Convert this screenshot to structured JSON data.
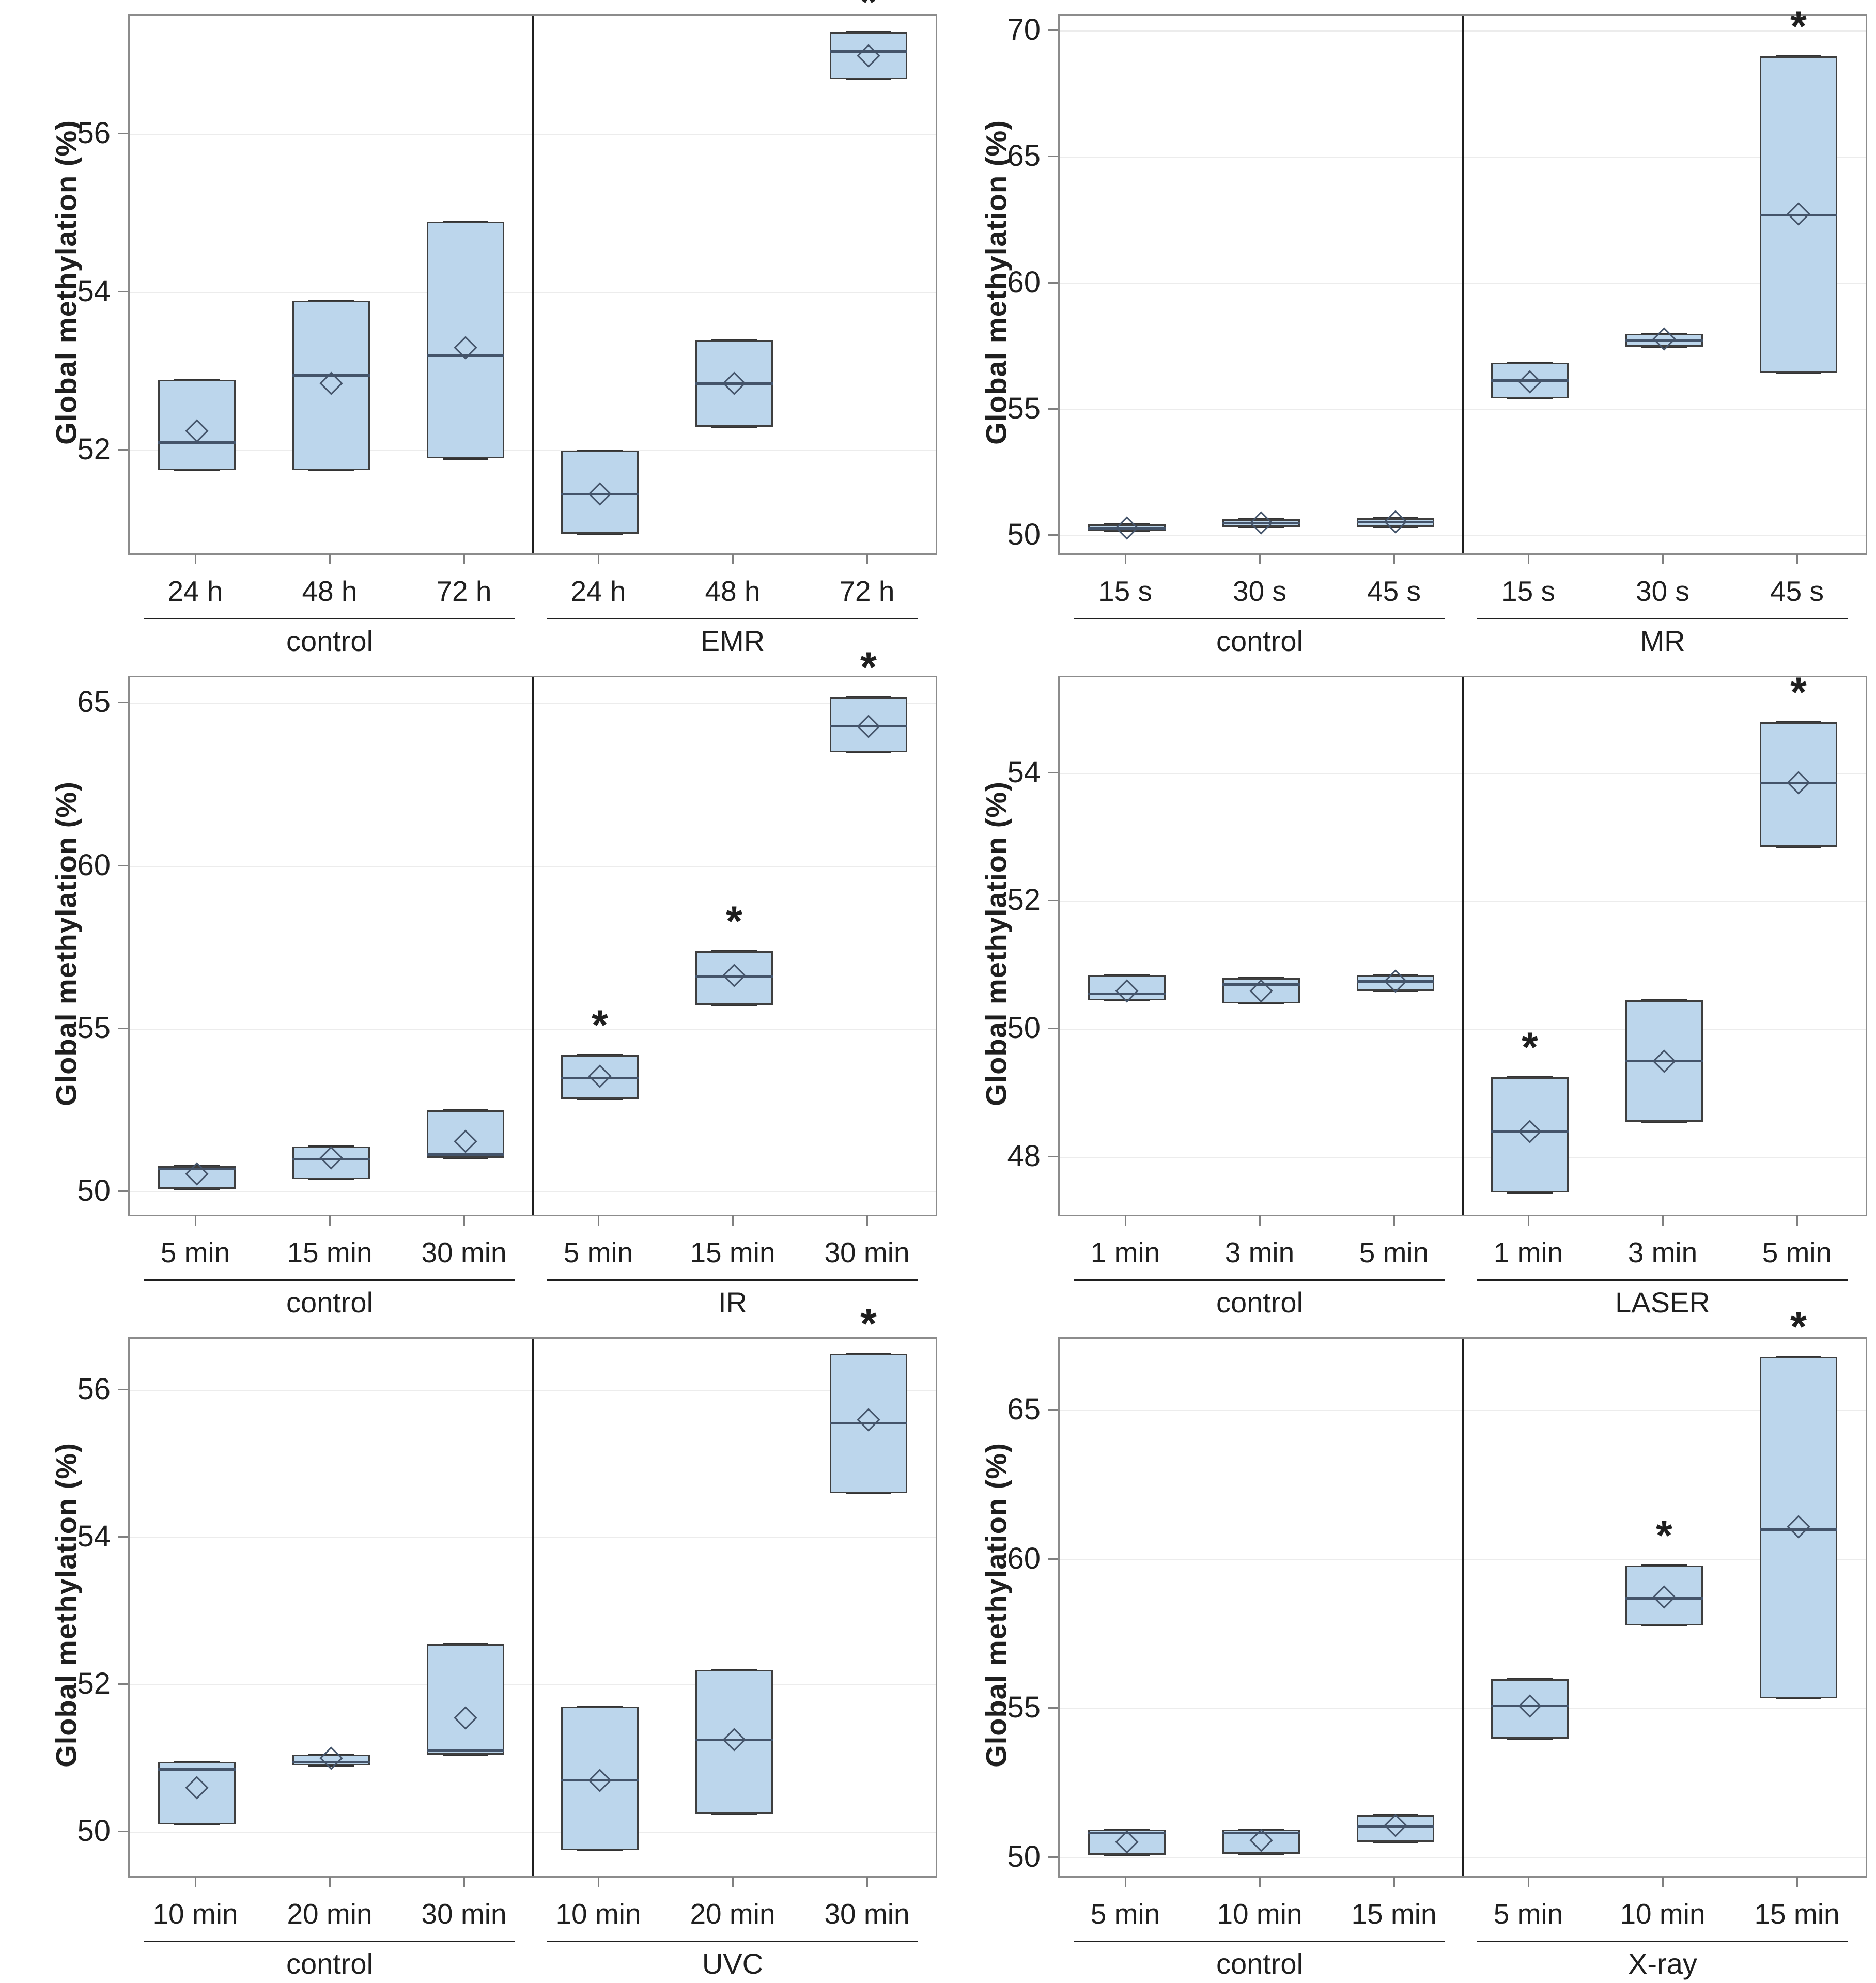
{
  "figure": {
    "y_axis_label": "Global methylation (%)",
    "significance_marker": "*"
  },
  "colors": {
    "box_fill": "#bcd6ec",
    "box_border": "#3f3f3f",
    "median_line": "#44546a",
    "mean_marker_outline": "#44546a",
    "whisker_cap": "#333333",
    "gridline": "#ececec",
    "panel_border": "#8c8c8c",
    "divider": "#1f1f1f",
    "text": "#1f1f1f",
    "tick": "#808080"
  },
  "chart_data": [
    {
      "type": "box",
      "panel": "EMR",
      "ylabel": "Global methylation (%)",
      "yticks": [
        52,
        54,
        56
      ],
      "ylim": [
        50.7,
        57.5
      ],
      "grid": true,
      "groups": [
        {
          "label": "control",
          "categories": [
            "24 h",
            "48 h",
            "72 h"
          ]
        },
        {
          "label": "EMR",
          "categories": [
            "24 h",
            "48 h",
            "72 h"
          ]
        }
      ],
      "boxes": [
        {
          "group": "control",
          "category": "24 h",
          "min": 51.75,
          "q1": 51.75,
          "median": 52.1,
          "q3": 52.9,
          "max": 52.9,
          "mean": 52.25,
          "significant": false
        },
        {
          "group": "control",
          "category": "48 h",
          "min": 51.75,
          "q1": 51.75,
          "median": 52.95,
          "q3": 53.9,
          "max": 53.9,
          "mean": 52.85,
          "significant": false
        },
        {
          "group": "control",
          "category": "72 h",
          "min": 51.9,
          "q1": 51.9,
          "median": 53.2,
          "q3": 54.9,
          "max": 54.9,
          "mean": 53.3,
          "significant": false
        },
        {
          "group": "EMR",
          "category": "24 h",
          "min": 50.95,
          "q1": 50.95,
          "median": 51.45,
          "q3": 52.0,
          "max": 52.0,
          "mean": 51.45,
          "significant": false
        },
        {
          "group": "EMR",
          "category": "48 h",
          "min": 52.3,
          "q1": 52.3,
          "median": 52.85,
          "q3": 53.4,
          "max": 53.4,
          "mean": 52.85,
          "significant": false
        },
        {
          "group": "EMR",
          "category": "72 h",
          "min": 56.7,
          "q1": 56.7,
          "median": 57.05,
          "q3": 57.3,
          "max": 57.3,
          "mean": 57.0,
          "significant": true
        }
      ]
    },
    {
      "type": "box",
      "panel": "MR",
      "ylabel": "Global methylation (%)",
      "yticks": [
        50,
        55,
        60,
        65,
        70
      ],
      "ylim": [
        49.3,
        70.6
      ],
      "grid": true,
      "groups": [
        {
          "label": "control",
          "categories": [
            "15 s",
            "30 s",
            "45 s"
          ]
        },
        {
          "label": "MR",
          "categories": [
            "15 s",
            "30 s",
            "45 s"
          ]
        }
      ],
      "boxes": [
        {
          "group": "control",
          "category": "15 s",
          "min": 50.2,
          "q1": 50.2,
          "median": 50.3,
          "q3": 50.45,
          "max": 50.45,
          "mean": 50.3,
          "significant": false
        },
        {
          "group": "control",
          "category": "30 s",
          "min": 50.35,
          "q1": 50.35,
          "median": 50.5,
          "q3": 50.65,
          "max": 50.65,
          "mean": 50.5,
          "significant": false
        },
        {
          "group": "control",
          "category": "45 s",
          "min": 50.35,
          "q1": 50.35,
          "median": 50.55,
          "q3": 50.7,
          "max": 50.7,
          "mean": 50.55,
          "significant": false
        },
        {
          "group": "MR",
          "category": "15 s",
          "min": 55.45,
          "q1": 55.45,
          "median": 56.15,
          "q3": 56.85,
          "max": 56.85,
          "mean": 56.1,
          "significant": false
        },
        {
          "group": "MR",
          "category": "30 s",
          "min": 57.5,
          "q1": 57.5,
          "median": 57.75,
          "q3": 58.0,
          "max": 58.0,
          "mean": 57.8,
          "significant": false
        },
        {
          "group": "MR",
          "category": "45 s",
          "min": 56.45,
          "q1": 56.45,
          "median": 62.7,
          "q3": 69.0,
          "max": 69.0,
          "mean": 62.75,
          "significant": true
        }
      ]
    },
    {
      "type": "box",
      "panel": "IR",
      "ylabel": "Global methylation (%)",
      "yticks": [
        50,
        55,
        60,
        65
      ],
      "ylim": [
        49.3,
        65.8
      ],
      "grid": true,
      "groups": [
        {
          "label": "control",
          "categories": [
            "5 min",
            "15 min",
            "30 min"
          ]
        },
        {
          "label": "IR",
          "categories": [
            "5 min",
            "15 min",
            "30 min"
          ]
        }
      ],
      "boxes": [
        {
          "group": "control",
          "category": "5 min",
          "min": 50.1,
          "q1": 50.1,
          "median": 50.7,
          "q3": 50.8,
          "max": 50.8,
          "mean": 50.55,
          "significant": false
        },
        {
          "group": "control",
          "category": "15 min",
          "min": 50.4,
          "q1": 50.4,
          "median": 51.0,
          "q3": 51.4,
          "max": 51.4,
          "mean": 51.05,
          "significant": false
        },
        {
          "group": "control",
          "category": "30 min",
          "min": 51.05,
          "q1": 51.05,
          "median": 51.15,
          "q3": 52.5,
          "max": 52.5,
          "mean": 51.55,
          "significant": false
        },
        {
          "group": "IR",
          "category": "5 min",
          "min": 52.85,
          "q1": 52.85,
          "median": 53.5,
          "q3": 54.2,
          "max": 54.2,
          "mean": 53.55,
          "significant": true
        },
        {
          "group": "IR",
          "category": "15 min",
          "min": 55.75,
          "q1": 55.75,
          "median": 56.6,
          "q3": 57.4,
          "max": 57.4,
          "mean": 56.65,
          "significant": true
        },
        {
          "group": "IR",
          "category": "30 min",
          "min": 63.5,
          "q1": 63.5,
          "median": 64.3,
          "q3": 65.2,
          "max": 65.2,
          "mean": 64.3,
          "significant": true
        }
      ]
    },
    {
      "type": "box",
      "panel": "LASER",
      "ylabel": "Global methylation (%)",
      "yticks": [
        48,
        50,
        52,
        54
      ],
      "ylim": [
        47.1,
        55.5
      ],
      "grid": true,
      "groups": [
        {
          "label": "control",
          "categories": [
            "1 min",
            "3 min",
            "5 min"
          ]
        },
        {
          "label": "LASER",
          "categories": [
            "1 min",
            "3 min",
            "5 min"
          ]
        }
      ],
      "boxes": [
        {
          "group": "control",
          "category": "1 min",
          "min": 50.45,
          "q1": 50.45,
          "median": 50.55,
          "q3": 50.85,
          "max": 50.85,
          "mean": 50.6,
          "significant": false
        },
        {
          "group": "control",
          "category": "3 min",
          "min": 50.4,
          "q1": 50.4,
          "median": 50.7,
          "q3": 50.8,
          "max": 50.8,
          "mean": 50.6,
          "significant": false
        },
        {
          "group": "control",
          "category": "5 min",
          "min": 50.6,
          "q1": 50.6,
          "median": 50.75,
          "q3": 50.85,
          "max": 50.85,
          "mean": 50.75,
          "significant": false
        },
        {
          "group": "LASER",
          "category": "1 min",
          "min": 47.45,
          "q1": 47.45,
          "median": 48.4,
          "q3": 49.25,
          "max": 49.25,
          "mean": 48.4,
          "significant": true
        },
        {
          "group": "LASER",
          "category": "3 min",
          "min": 48.55,
          "q1": 48.55,
          "median": 49.5,
          "q3": 50.45,
          "max": 50.45,
          "mean": 49.5,
          "significant": false
        },
        {
          "group": "LASER",
          "category": "5 min",
          "min": 52.85,
          "q1": 52.85,
          "median": 53.85,
          "q3": 54.8,
          "max": 54.8,
          "mean": 53.85,
          "significant": true
        }
      ]
    },
    {
      "type": "box",
      "panel": "UVC",
      "ylabel": "Global methylation (%)",
      "yticks": [
        50,
        52,
        54,
        56
      ],
      "ylim": [
        49.4,
        56.7
      ],
      "grid": true,
      "groups": [
        {
          "label": "control",
          "categories": [
            "10 min",
            "20 min",
            "30 min"
          ]
        },
        {
          "label": "UVC",
          "categories": [
            "10 min",
            "20 min",
            "30 min"
          ]
        }
      ],
      "boxes": [
        {
          "group": "control",
          "category": "10 min",
          "min": 50.1,
          "q1": 50.1,
          "median": 50.85,
          "q3": 50.95,
          "max": 50.95,
          "mean": 50.6,
          "significant": false
        },
        {
          "group": "control",
          "category": "20 min",
          "min": 50.9,
          "q1": 50.9,
          "median": 50.95,
          "q3": 51.05,
          "max": 51.05,
          "mean": 51.0,
          "significant": false
        },
        {
          "group": "control",
          "category": "30 min",
          "min": 51.05,
          "q1": 51.05,
          "median": 51.1,
          "q3": 52.55,
          "max": 52.55,
          "mean": 51.55,
          "significant": false
        },
        {
          "group": "UVC",
          "category": "10 min",
          "min": 49.75,
          "q1": 49.75,
          "median": 50.7,
          "q3": 51.7,
          "max": 51.7,
          "mean": 50.7,
          "significant": false
        },
        {
          "group": "UVC",
          "category": "20 min",
          "min": 50.25,
          "q1": 50.25,
          "median": 51.25,
          "q3": 52.2,
          "max": 52.2,
          "mean": 51.25,
          "significant": false
        },
        {
          "group": "UVC",
          "category": "30 min",
          "min": 54.6,
          "q1": 54.6,
          "median": 55.55,
          "q3": 56.5,
          "max": 56.5,
          "mean": 55.6,
          "significant": true
        }
      ]
    },
    {
      "type": "box",
      "panel": "X-ray",
      "ylabel": "Global methylation (%)",
      "yticks": [
        50,
        55,
        60,
        65
      ],
      "ylim": [
        49.4,
        67.4
      ],
      "grid": true,
      "groups": [
        {
          "label": "control",
          "categories": [
            "5 min",
            "10 min",
            "15 min"
          ]
        },
        {
          "label": "X-ray",
          "categories": [
            "5 min",
            "10 min",
            "15 min"
          ]
        }
      ],
      "boxes": [
        {
          "group": "control",
          "category": "5 min",
          "min": 50.1,
          "q1": 50.1,
          "median": 50.85,
          "q3": 50.95,
          "max": 50.95,
          "mean": 50.55,
          "significant": false
        },
        {
          "group": "control",
          "category": "10 min",
          "min": 50.15,
          "q1": 50.15,
          "median": 50.85,
          "q3": 50.95,
          "max": 50.95,
          "mean": 50.6,
          "significant": false
        },
        {
          "group": "control",
          "category": "15 min",
          "min": 50.55,
          "q1": 50.55,
          "median": 51.05,
          "q3": 51.45,
          "max": 51.45,
          "mean": 51.1,
          "significant": false
        },
        {
          "group": "X-ray",
          "category": "5 min",
          "min": 54.0,
          "q1": 54.0,
          "median": 55.1,
          "q3": 56.0,
          "max": 56.0,
          "mean": 55.1,
          "significant": false
        },
        {
          "group": "X-ray",
          "category": "10 min",
          "min": 57.8,
          "q1": 57.8,
          "median": 58.7,
          "q3": 59.8,
          "max": 59.8,
          "mean": 58.75,
          "significant": true
        },
        {
          "group": "X-ray",
          "category": "15 min",
          "min": 55.35,
          "q1": 55.35,
          "median": 61.0,
          "q3": 66.8,
          "max": 66.8,
          "mean": 61.1,
          "significant": true
        }
      ]
    }
  ]
}
